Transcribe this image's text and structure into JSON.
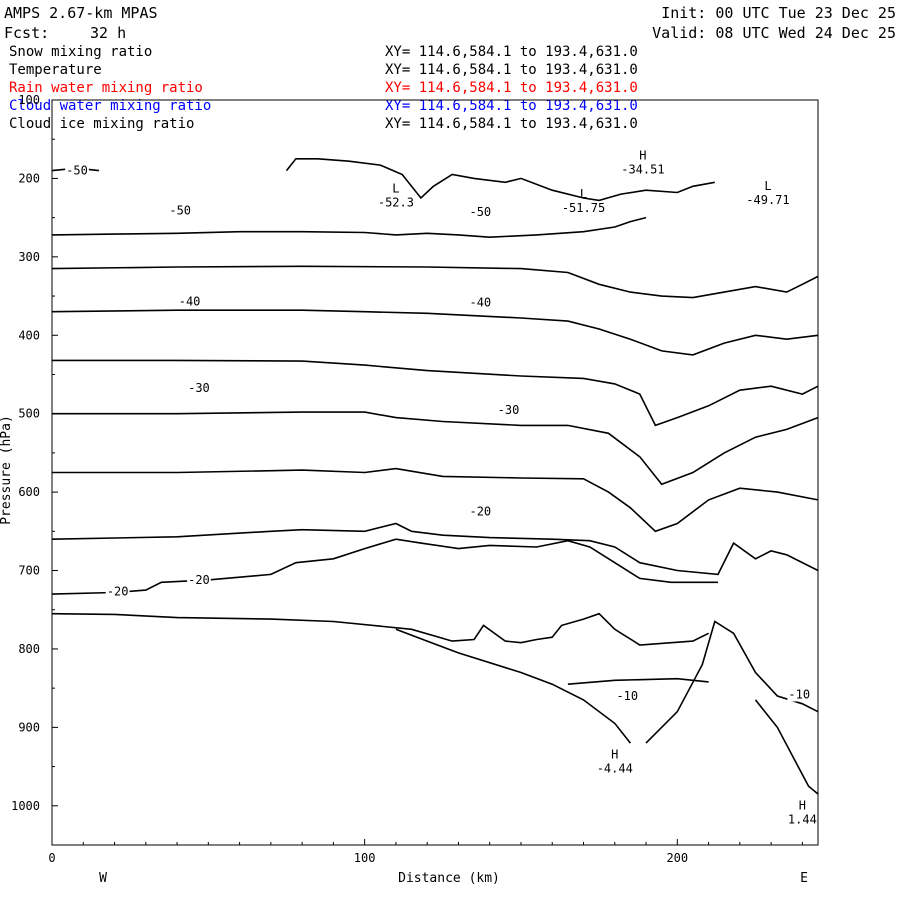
{
  "header": {
    "model": "AMPS 2.67-km MPAS",
    "forecast_label": "Fcst:",
    "forecast_value": "32 h",
    "init": "Init: 00 UTC Tue 23 Dec 25",
    "valid": "Valid: 08 UTC Wed 24 Dec 25"
  },
  "fields": [
    {
      "name": "Snow mixing ratio",
      "xy": "XY= 114.6,584.1 to 193.4,631.0",
      "color": "#000000"
    },
    {
      "name": "Temperature",
      "xy": "XY= 114.6,584.1 to 193.4,631.0",
      "color": "#000000"
    },
    {
      "name": "Rain water mixing ratio",
      "xy": "XY= 114.6,584.1 to 193.4,631.0",
      "color": "#ff0000"
    },
    {
      "name": "Cloud water mixing ratio",
      "xy": "XY= 114.6,584.1 to 193.4,631.0",
      "color": "#0000ff"
    },
    {
      "name": "Cloud ice mixing ratio",
      "xy": "XY= 114.6,584.1 to 193.4,631.0",
      "color": "#000000"
    }
  ],
  "chart_data": {
    "type": "line",
    "xlabel": "Distance (km)",
    "ylabel": "Pressure (hPa)",
    "xlim": [
      0,
      245
    ],
    "ylim": [
      1050,
      100
    ],
    "x_ticks": [
      0,
      100,
      200
    ],
    "y_ticks": [
      100,
      200,
      300,
      400,
      500,
      600,
      700,
      800,
      900,
      1000
    ],
    "left_end_label": "W",
    "right_end_label": "E",
    "grid": false,
    "contours": [
      {
        "level": -50,
        "points": [
          [
            0,
            272
          ],
          [
            20,
            271
          ],
          [
            40,
            270
          ],
          [
            60,
            268
          ],
          [
            80,
            268
          ],
          [
            100,
            269
          ],
          [
            110,
            272
          ],
          [
            120,
            270
          ],
          [
            130,
            272
          ],
          [
            140,
            275
          ],
          [
            155,
            272
          ],
          [
            170,
            268
          ],
          [
            180,
            262
          ],
          [
            185,
            255
          ],
          [
            190,
            250
          ]
        ]
      },
      {
        "level": -50,
        "points": [
          [
            0,
            190
          ],
          [
            8,
            187
          ],
          [
            15,
            190
          ]
        ]
      },
      {
        "level": -50,
        "points": [
          [
            75,
            190
          ],
          [
            78,
            175
          ],
          [
            85,
            175
          ],
          [
            95,
            178
          ],
          [
            105,
            183
          ],
          [
            112,
            195
          ],
          [
            118,
            225
          ],
          [
            122,
            210
          ],
          [
            128,
            195
          ],
          [
            135,
            200
          ],
          [
            145,
            205
          ],
          [
            150,
            200
          ],
          [
            160,
            215
          ],
          [
            170,
            225
          ],
          [
            175,
            228
          ],
          [
            182,
            220
          ],
          [
            190,
            215
          ],
          [
            200,
            218
          ],
          [
            205,
            210
          ],
          [
            212,
            205
          ]
        ]
      },
      {
        "level": -45,
        "points": [
          [
            0,
            315
          ],
          [
            40,
            313
          ],
          [
            80,
            312
          ],
          [
            120,
            313
          ],
          [
            150,
            315
          ],
          [
            165,
            320
          ],
          [
            175,
            335
          ],
          [
            185,
            345
          ],
          [
            195,
            350
          ],
          [
            205,
            352
          ],
          [
            215,
            345
          ],
          [
            225,
            338
          ],
          [
            235,
            345
          ],
          [
            240,
            335
          ],
          [
            245,
            325
          ]
        ]
      },
      {
        "level": -40,
        "points": [
          [
            0,
            370
          ],
          [
            40,
            368
          ],
          [
            80,
            368
          ],
          [
            100,
            370
          ],
          [
            120,
            372
          ],
          [
            150,
            378
          ],
          [
            165,
            382
          ],
          [
            175,
            392
          ],
          [
            185,
            405
          ],
          [
            195,
            420
          ],
          [
            205,
            425
          ],
          [
            215,
            410
          ],
          [
            225,
            400
          ],
          [
            235,
            405
          ],
          [
            245,
            400
          ]
        ]
      },
      {
        "level": -35,
        "points": [
          [
            0,
            432
          ],
          [
            40,
            432
          ],
          [
            80,
            433
          ],
          [
            100,
            438
          ],
          [
            120,
            445
          ],
          [
            150,
            452
          ],
          [
            170,
            455
          ],
          [
            180,
            462
          ],
          [
            188,
            475
          ],
          [
            193,
            515
          ],
          [
            200,
            505
          ],
          [
            210,
            490
          ],
          [
            220,
            470
          ],
          [
            230,
            465
          ],
          [
            240,
            475
          ],
          [
            245,
            465
          ]
        ]
      },
      {
        "level": -30,
        "points": [
          [
            0,
            500
          ],
          [
            40,
            500
          ],
          [
            80,
            498
          ],
          [
            100,
            498
          ],
          [
            110,
            505
          ],
          [
            125,
            510
          ],
          [
            150,
            515
          ],
          [
            165,
            515
          ],
          [
            178,
            525
          ],
          [
            188,
            555
          ],
          [
            195,
            590
          ],
          [
            205,
            575
          ],
          [
            215,
            550
          ],
          [
            225,
            530
          ],
          [
            235,
            520
          ],
          [
            245,
            505
          ]
        ]
      },
      {
        "level": -25,
        "points": [
          [
            0,
            575
          ],
          [
            40,
            575
          ],
          [
            80,
            572
          ],
          [
            100,
            575
          ],
          [
            110,
            570
          ],
          [
            125,
            580
          ],
          [
            150,
            582
          ],
          [
            170,
            583
          ],
          [
            178,
            600
          ],
          [
            185,
            620
          ],
          [
            193,
            650
          ],
          [
            200,
            640
          ],
          [
            210,
            610
          ],
          [
            220,
            595
          ],
          [
            232,
            600
          ],
          [
            245,
            610
          ]
        ]
      },
      {
        "level": -20,
        "points": [
          [
            0,
            660
          ],
          [
            40,
            657
          ],
          [
            70,
            650
          ],
          [
            80,
            648
          ],
          [
            100,
            650
          ],
          [
            110,
            640
          ],
          [
            115,
            650
          ],
          [
            125,
            655
          ],
          [
            140,
            658
          ],
          [
            160,
            660
          ],
          [
            172,
            662
          ],
          [
            180,
            670
          ],
          [
            188,
            690
          ],
          [
            200,
            700
          ],
          [
            213,
            705
          ],
          [
            218,
            665
          ],
          [
            225,
            685
          ],
          [
            230,
            675
          ],
          [
            235,
            680
          ],
          [
            245,
            700
          ]
        ]
      },
      {
        "level": -20,
        "points": [
          [
            0,
            730
          ],
          [
            20,
            728
          ],
          [
            30,
            725
          ],
          [
            35,
            715
          ],
          [
            50,
            712
          ],
          [
            70,
            705
          ],
          [
            78,
            690
          ],
          [
            90,
            685
          ],
          [
            100,
            672
          ],
          [
            110,
            660
          ],
          [
            118,
            665
          ],
          [
            130,
            672
          ],
          [
            140,
            668
          ],
          [
            155,
            670
          ],
          [
            165,
            662
          ],
          [
            172,
            670
          ],
          [
            180,
            690
          ],
          [
            188,
            710
          ],
          [
            198,
            715
          ],
          [
            213,
            715
          ]
        ]
      },
      {
        "level": -15,
        "points": [
          [
            0,
            755
          ],
          [
            20,
            756
          ],
          [
            40,
            760
          ],
          [
            70,
            762
          ],
          [
            90,
            765
          ],
          [
            115,
            775
          ],
          [
            128,
            790
          ],
          [
            135,
            788
          ],
          [
            138,
            770
          ],
          [
            145,
            790
          ],
          [
            150,
            792
          ],
          [
            155,
            788
          ],
          [
            160,
            785
          ],
          [
            163,
            770
          ],
          [
            170,
            762
          ],
          [
            175,
            755
          ],
          [
            180,
            775
          ],
          [
            188,
            795
          ],
          [
            205,
            790
          ],
          [
            210,
            780
          ]
        ]
      },
      {
        "level": -10,
        "points": [
          [
            110,
            775
          ],
          [
            120,
            790
          ],
          [
            130,
            805
          ],
          [
            150,
            830
          ],
          [
            160,
            845
          ],
          [
            170,
            865
          ],
          [
            180,
            895
          ],
          [
            185,
            920
          ]
        ]
      },
      {
        "level": -10,
        "points": [
          [
            165,
            845
          ],
          [
            180,
            840
          ],
          [
            200,
            838
          ],
          [
            210,
            842
          ]
        ]
      },
      {
        "level": -10,
        "points": [
          [
            190,
            920
          ],
          [
            200,
            880
          ],
          [
            208,
            820
          ],
          [
            212,
            765
          ],
          [
            218,
            780
          ],
          [
            225,
            830
          ],
          [
            232,
            860
          ],
          [
            240,
            870
          ],
          [
            245,
            880
          ]
        ]
      },
      {
        "level": -5,
        "points": [
          [
            225,
            865
          ],
          [
            232,
            900
          ],
          [
            238,
            945
          ],
          [
            242,
            975
          ],
          [
            245,
            985
          ]
        ]
      }
    ],
    "contour_labels": [
      {
        "text": "-50",
        "x": 8,
        "y": 190
      },
      {
        "text": "-50",
        "x": 41,
        "y": 241
      },
      {
        "text": "-50",
        "x": 137,
        "y": 243
      },
      {
        "text": "-40",
        "x": 44,
        "y": 357
      },
      {
        "text": "-40",
        "x": 137,
        "y": 358
      },
      {
        "text": "-30",
        "x": 47,
        "y": 467
      },
      {
        "text": "-30",
        "x": 146,
        "y": 495
      },
      {
        "text": "-20",
        "x": 137,
        "y": 625
      },
      {
        "text": "-20",
        "x": 47,
        "y": 712
      },
      {
        "text": "-20",
        "x": 21,
        "y": 727
      },
      {
        "text": "-10",
        "x": 184,
        "y": 860
      },
      {
        "text": "-10",
        "x": 239,
        "y": 858
      }
    ],
    "extrema": [
      {
        "kind": "H",
        "value": "-34.51",
        "x": 189,
        "y": 176
      },
      {
        "kind": "L",
        "value": "-52.3",
        "x": 110,
        "y": 218
      },
      {
        "kind": "L",
        "value": "-51.75",
        "x": 170,
        "y": 225
      },
      {
        "kind": "L",
        "value": "-49.71",
        "x": 229,
        "y": 215
      },
      {
        "kind": "H",
        "value": "-4.44",
        "x": 180,
        "y": 940
      },
      {
        "kind": "H",
        "value": "1.44",
        "x": 240,
        "y": 1005
      }
    ]
  }
}
